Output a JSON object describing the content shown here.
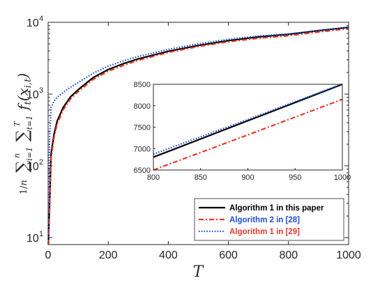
{
  "chart_data": {
    "type": "line",
    "xlabel": "T",
    "ylabel": "(1/n) Σ_{i=1}^{n} Σ_{t=1}^{T} f_t(x_{i,t})",
    "yscale": "log",
    "xlim": [
      0,
      1000
    ],
    "ylim": [
      8,
      10000
    ],
    "x_ticks": [
      "0",
      "200",
      "400",
      "600",
      "800",
      "1000"
    ],
    "y_ticks": [
      "10",
      "10",
      "10",
      "10"
    ],
    "y_tick_exponents": [
      "1",
      "2",
      "3",
      "4"
    ],
    "legend_placement": "bottom-right",
    "grid": false,
    "series": [
      {
        "name": "Algorithm 1 in this paper",
        "color": "#000000",
        "label_color": "#000000",
        "dash": "solid",
        "x": [
          1,
          2,
          5,
          10,
          20,
          30,
          50,
          75,
          100,
          150,
          200,
          250,
          300,
          400,
          500,
          600,
          700,
          800,
          900,
          1000
        ],
        "y": [
          8,
          12,
          30,
          150,
          280,
          420,
          650,
          920,
          1150,
          1700,
          2200,
          2650,
          3100,
          3950,
          4750,
          5550,
          6250,
          6800,
          7650,
          8500
        ]
      },
      {
        "name": "Algorithm 2 in [28]",
        "color": "#e8392a",
        "label_color": "#1f4fd6",
        "dash": "dashdot",
        "x": [
          1,
          2,
          5,
          10,
          20,
          30,
          50,
          75,
          100,
          150,
          200,
          250,
          300,
          400,
          500,
          600,
          700,
          800,
          900,
          1000
        ],
        "y": [
          8,
          10,
          25,
          130,
          250,
          380,
          600,
          860,
          1080,
          1600,
          2080,
          2500,
          2950,
          3800,
          4600,
          5350,
          6000,
          6500,
          7320,
          8150
        ]
      },
      {
        "name": "Algorithm 1 in [29]",
        "color": "#1f4fd6",
        "label_color": "#e8392a",
        "dash": "dotted",
        "x": [
          1,
          2,
          5,
          10,
          20,
          30,
          50,
          75,
          100,
          150,
          200,
          250,
          300,
          400,
          500,
          600,
          700,
          800,
          900,
          1000
        ],
        "y": [
          10,
          50,
          250,
          650,
          800,
          900,
          1050,
          1250,
          1450,
          1950,
          2450,
          2900,
          3350,
          4200,
          5000,
          5800,
          6450,
          6870,
          7680,
          8510
        ]
      }
    ],
    "inset": {
      "xlim": [
        800,
        1000
      ],
      "ylim": [
        6500,
        8500
      ],
      "x_ticks": [
        "800",
        "850",
        "900",
        "950",
        "1000"
      ],
      "y_ticks": [
        "6500",
        "7000",
        "7500",
        "8000",
        "8500"
      ]
    }
  }
}
